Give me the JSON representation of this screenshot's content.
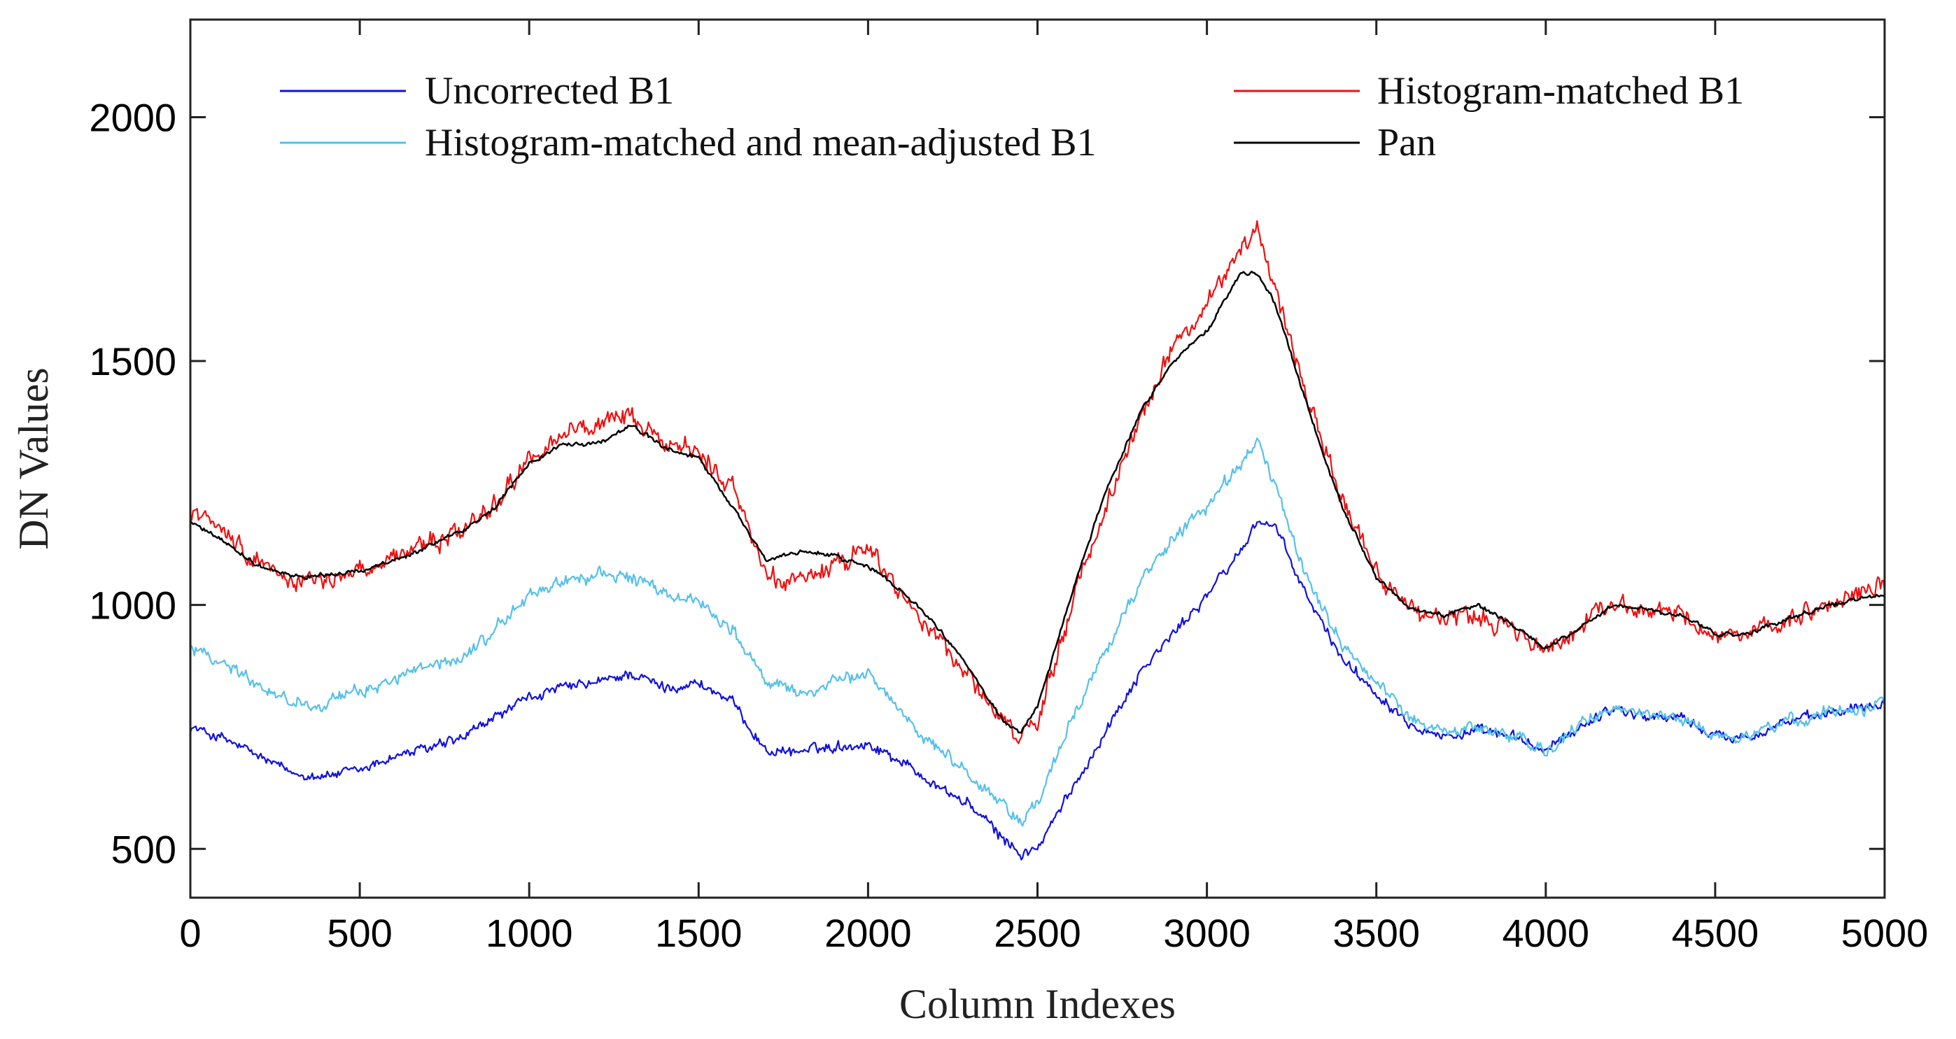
{
  "chart_data": {
    "type": "line",
    "title": "",
    "xlabel": "Column Indexes",
    "ylabel": "DN Values",
    "xlim": [
      0,
      5000
    ],
    "ylim": [
      400,
      2200
    ],
    "xticks": [
      0,
      500,
      1000,
      1500,
      2000,
      2500,
      3000,
      3500,
      4000,
      4500,
      5000
    ],
    "yticks": [
      500,
      1000,
      1500,
      2000
    ],
    "xtick_labels": [
      "0",
      "500",
      "1000",
      "1500",
      "2000",
      "2500",
      "3000",
      "3500",
      "4000",
      "4500",
      "5000"
    ],
    "ytick_labels": [
      "500",
      "1000",
      "1500",
      "2000"
    ],
    "grid": false,
    "legend_position": "top",
    "x": [
      0,
      100,
      200,
      300,
      400,
      500,
      600,
      700,
      800,
      900,
      1000,
      1100,
      1200,
      1300,
      1400,
      1500,
      1600,
      1700,
      1800,
      1900,
      2000,
      2100,
      2200,
      2300,
      2400,
      2450,
      2500,
      2600,
      2700,
      2800,
      2900,
      3000,
      3100,
      3150,
      3200,
      3300,
      3400,
      3500,
      3600,
      3700,
      3800,
      3900,
      4000,
      4100,
      4200,
      4300,
      4400,
      4500,
      4600,
      4700,
      4800,
      4900,
      5000
    ],
    "series": [
      {
        "name": "Uncorrected B1",
        "color": "#1010dd",
        "noise": 12,
        "values": [
          750,
          725,
          690,
          655,
          650,
          660,
          690,
          705,
          725,
          770,
          810,
          830,
          840,
          860,
          830,
          840,
          800,
          700,
          700,
          710,
          715,
          680,
          630,
          590,
          520,
          490,
          500,
          620,
          740,
          860,
          940,
          1020,
          1110,
          1175,
          1160,
          1010,
          890,
          820,
          760,
          730,
          740,
          730,
          700,
          750,
          790,
          770,
          770,
          730,
          730,
          760,
          770,
          790,
          800
        ]
      },
      {
        "name": "Histogram-matched B1",
        "color": "#ee1111",
        "noise": 22,
        "values": [
          1200,
          1150,
          1090,
          1050,
          1050,
          1070,
          1100,
          1120,
          1150,
          1210,
          1300,
          1350,
          1370,
          1380,
          1330,
          1310,
          1240,
          1060,
          1050,
          1080,
          1120,
          1020,
          940,
          850,
          760,
          720,
          760,
          1000,
          1200,
          1380,
          1530,
          1620,
          1720,
          1780,
          1660,
          1420,
          1220,
          1070,
          990,
          970,
          980,
          950,
          900,
          960,
          1010,
          990,
          980,
          940,
          930,
          960,
          990,
          1020,
          1040
        ]
      },
      {
        "name": "Histogram-matched and mean-adjusted B1",
        "color": "#55c0ea",
        "noise": 15,
        "values": [
          920,
          880,
          840,
          800,
          800,
          820,
          850,
          870,
          890,
          950,
          1020,
          1050,
          1060,
          1060,
          1020,
          1010,
          950,
          840,
          820,
          840,
          860,
          780,
          710,
          650,
          590,
          560,
          590,
          760,
          910,
          1040,
          1140,
          1200,
          1290,
          1340,
          1240,
          1050,
          920,
          840,
          770,
          740,
          750,
          730,
          700,
          750,
          790,
          775,
          770,
          730,
          730,
          760,
          775,
          790,
          800
        ]
      },
      {
        "name": "Pan",
        "color": "#000000",
        "noise": 5,
        "values": [
          1170,
          1130,
          1080,
          1060,
          1060,
          1070,
          1090,
          1120,
          1150,
          1200,
          1290,
          1330,
          1330,
          1370,
          1320,
          1300,
          1200,
          1090,
          1110,
          1100,
          1080,
          1030,
          960,
          870,
          760,
          740,
          790,
          1020,
          1230,
          1390,
          1500,
          1560,
          1680,
          1680,
          1620,
          1400,
          1200,
          1060,
          990,
          980,
          1000,
          960,
          910,
          950,
          1000,
          990,
          980,
          940,
          940,
          970,
          990,
          1010,
          1020
        ]
      }
    ]
  }
}
